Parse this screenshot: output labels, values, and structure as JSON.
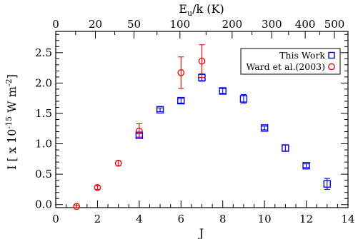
{
  "chart_data": {
    "type": "scatter",
    "xlabel": "J",
    "ylabel_parts": {
      "prefix": "I [ x 10",
      "exp": "-15",
      "middle": " W m",
      "exp2": "-2",
      "suffix": "]"
    },
    "top_axis_label_parts": {
      "base": "E",
      "sub": "u",
      "rest": "/k (K)"
    },
    "xlim": [
      0,
      14
    ],
    "ylim": [
      -0.05,
      2.85
    ],
    "x_ticks": [
      0,
      2,
      4,
      6,
      8,
      10,
      12,
      14
    ],
    "y_ticks": [
      0.0,
      0.5,
      1.0,
      1.5,
      2.0,
      2.5
    ],
    "y_tick_labels": [
      "0.0",
      "0.5",
      "1.0",
      "1.5",
      "2.0",
      "2.5"
    ],
    "top_ticks": [
      {
        "label": "0",
        "j": 0
      },
      {
        "label": "20",
        "j": 1.9
      },
      {
        "label": "50",
        "j": 3.75
      },
      {
        "label": "100",
        "j": 5.95
      },
      {
        "label": "200",
        "j": 8.45
      },
      {
        "label": "300",
        "j": 10.35
      },
      {
        "label": "400",
        "j": 11.95
      },
      {
        "label": "500",
        "j": 13.35
      }
    ],
    "legend_position": "top-right",
    "series": [
      {
        "name": "This Work",
        "marker": "square",
        "color": "#0000ee",
        "points": [
          {
            "x": 4,
            "y": 1.14,
            "err": 0.03
          },
          {
            "x": 5,
            "y": 1.56,
            "err": 0.03
          },
          {
            "x": 6,
            "y": 1.71,
            "err": 0.04
          },
          {
            "x": 7,
            "y": 2.09,
            "err": 0.06
          },
          {
            "x": 8,
            "y": 1.87,
            "err": 0.04
          },
          {
            "x": 9,
            "y": 1.74,
            "err": 0.07
          },
          {
            "x": 10,
            "y": 1.26,
            "err": 0.03
          },
          {
            "x": 11,
            "y": 0.93,
            "err": 0.05
          },
          {
            "x": 12,
            "y": 0.64,
            "err": 0.03
          },
          {
            "x": 13,
            "y": 0.34,
            "err": 0.09
          }
        ]
      },
      {
        "name": "Ward et al.(2003)",
        "marker": "circle",
        "color": "#ee0000",
        "points": [
          {
            "x": 1,
            "y": -0.03,
            "err": 0.02
          },
          {
            "x": 2,
            "y": 0.28,
            "err": 0.03
          },
          {
            "x": 3,
            "y": 0.68,
            "err": 0.04
          },
          {
            "x": 4,
            "y": 1.21,
            "err": 0.12
          },
          {
            "x": 6,
            "y": 2.17,
            "err": 0.26
          },
          {
            "x": 7,
            "y": 2.36,
            "err": 0.27
          }
        ]
      }
    ]
  }
}
